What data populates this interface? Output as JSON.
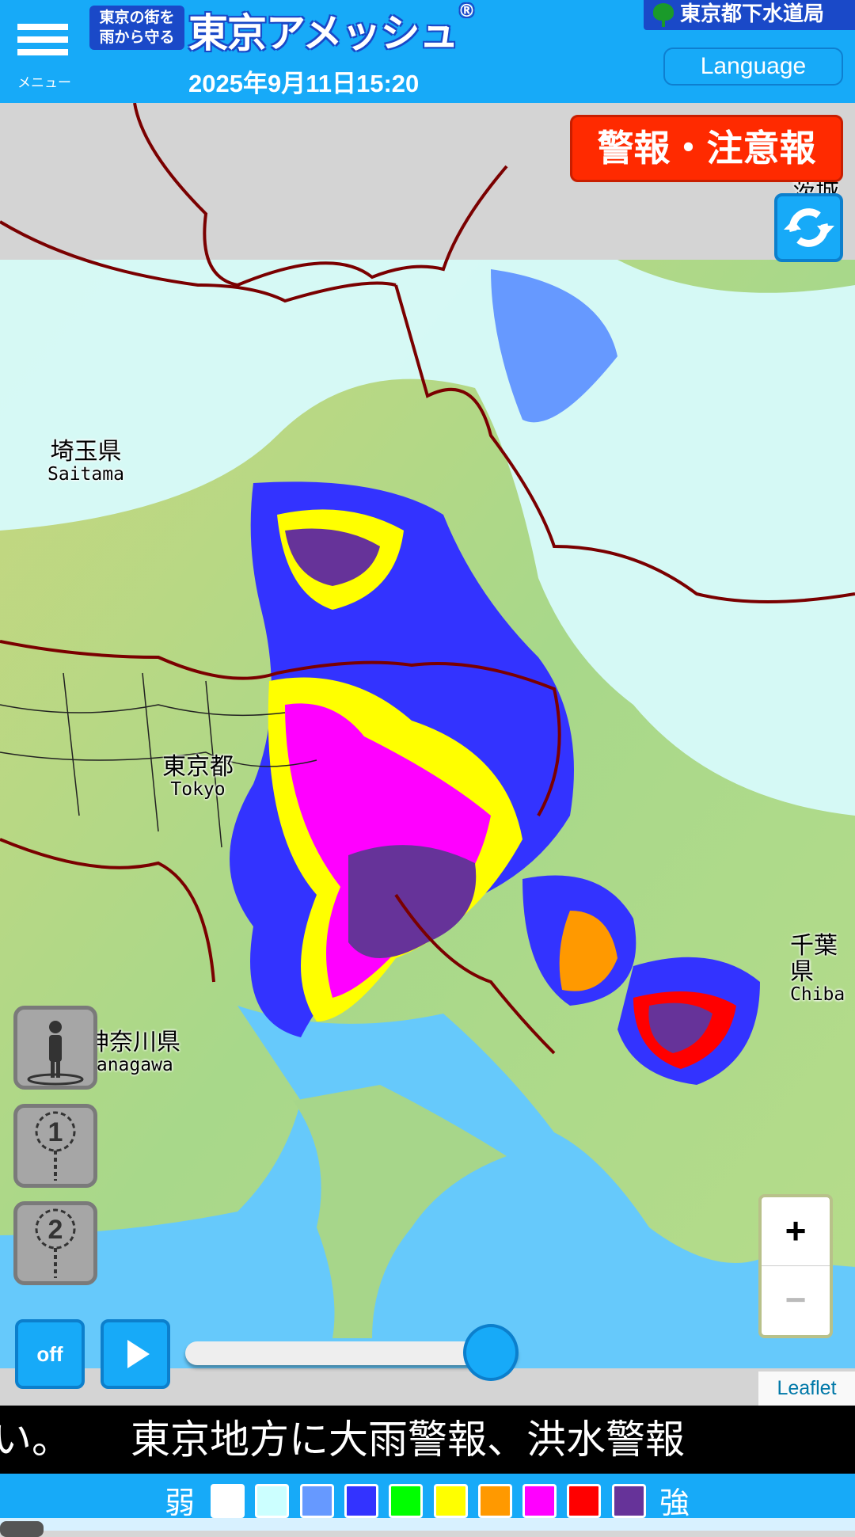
{
  "header": {
    "menu_label": "メニュー",
    "logo_tagline_line1": "東京の街を",
    "logo_tagline_line2": "雨から守る",
    "app_title": "東京アメッシュ",
    "registered_mark": "®",
    "datetime": "2025年9月11日15:20",
    "org_name": "東京都下水道局",
    "language_button": "Language"
  },
  "map": {
    "warning_button": "警報・注意報",
    "labels": [
      {
        "jp": "埼玉県",
        "en": "Saitama"
      },
      {
        "jp": "東京都",
        "en": "Tokyo"
      },
      {
        "jp": "千葉県",
        "en": "Chiba"
      },
      {
        "jp": "神奈川県",
        "en": "Kanagawa"
      },
      {
        "jp": "茨城県",
        "en": ""
      }
    ],
    "zoom_in": "+",
    "zoom_out": "−",
    "attribution": "Leaflet",
    "point_buttons": [
      "1",
      "2"
    ]
  },
  "playback": {
    "off_label": "off",
    "slider_position": 1.0
  },
  "ticker": {
    "text": "ない。　　東京地方に大雨警報、洪水警報"
  },
  "legend": {
    "weak_label": "弱",
    "strong_label": "強",
    "colors": [
      "#ffffff",
      "#ccffff",
      "#6699ff",
      "#3333ff",
      "#00ff00",
      "#ffff00",
      "#ff9900",
      "#ff00ff",
      "#ff0000",
      "#663399"
    ]
  },
  "colors": {
    "header_bg": "#17aaf8",
    "warning_red": "#ff2a00",
    "logo_blue": "#1a49c8"
  }
}
